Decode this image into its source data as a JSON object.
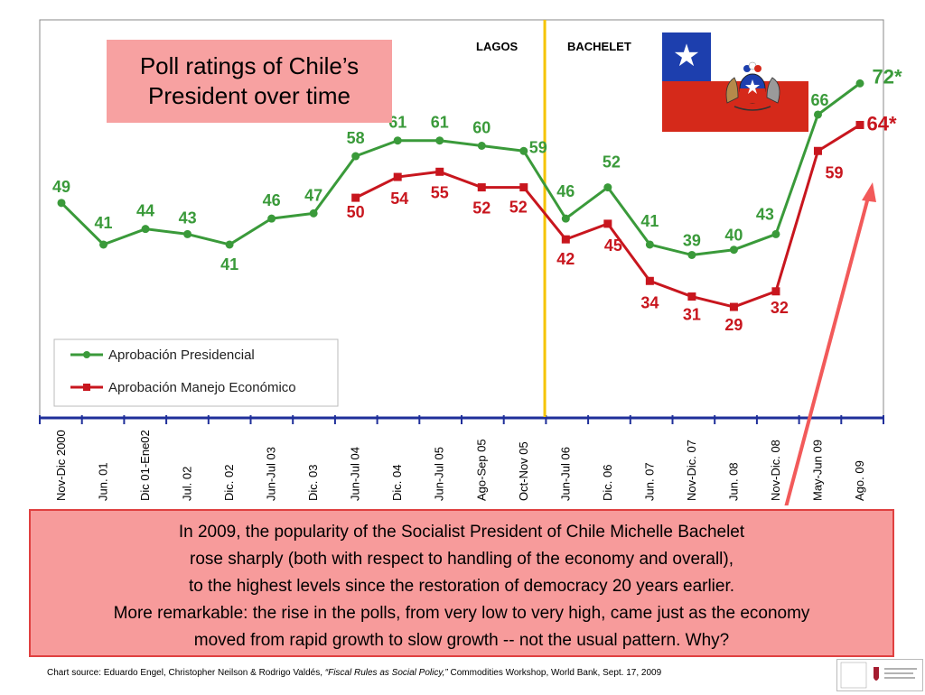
{
  "title": {
    "line1": "Poll ratings of Chile’s",
    "line2": "President over time"
  },
  "eras": {
    "left": "LAGOS",
    "right": "BACHELET"
  },
  "flag": {
    "icon": "chile-flag-icon",
    "blue": "#1d3fae",
    "red": "#d5291a",
    "star": "★"
  },
  "chart_data": {
    "type": "line",
    "categories": [
      "Nov-Dic 2000",
      "Jun. 01",
      "Dic 01-Ene02",
      "Jul. 02",
      "Dic. 02",
      "Jun-Jul 03",
      "Dic. 03",
      "Jun-Jul 04",
      "Dic. 04",
      "Jun-Jul 05",
      "Ago-Sep 05",
      "Oct-Nov 05",
      "Jun-Jul 06",
      "Dic. 06",
      "Jun. 07",
      "Nov-Dic. 07",
      "Jun. 08",
      "Nov-Dic. 08",
      "May-Jun 09",
      "Ago. 09"
    ],
    "series": [
      {
        "name": "Aprobación Presidencial",
        "color": "#3a9a3a",
        "values": [
          49,
          41,
          44,
          43,
          41,
          46,
          47,
          58,
          61,
          61,
          60,
          59,
          46,
          52,
          41,
          39,
          40,
          43,
          66,
          72
        ],
        "labels": [
          "49",
          "41",
          "44",
          "43",
          "41",
          "46",
          "47",
          "58",
          "61",
          "61",
          "60",
          "59",
          "46",
          "52",
          "41",
          "39",
          "40",
          "43",
          "66",
          "72*"
        ]
      },
      {
        "name": "Aprobación Manejo Económico",
        "color": "#c8161e",
        "values": [
          null,
          null,
          null,
          null,
          null,
          null,
          null,
          50,
          54,
          55,
          52,
          52,
          42,
          45,
          34,
          31,
          29,
          32,
          59,
          64
        ],
        "labels": [
          "",
          "",
          "",
          "",
          "",
          "",
          "",
          "50",
          "54",
          "55",
          "52",
          "52",
          "42",
          "45",
          "34",
          "31",
          "29",
          "32",
          "59",
          "64*"
        ]
      }
    ],
    "divider_after": "Oct-Nov 05",
    "legend": "bottom-left",
    "grid": false
  },
  "note": {
    "lines": [
      "In 2009, the popularity of the Socialist President of Chile Michelle Bachelet",
      "rose sharply (both with respect to handling of the economy and overall),",
      "to the highest levels since the restoration of democracy 20 years earlier.",
      "More remarkable:  the rise in the polls, from very low to very high, came just as the economy",
      "moved from rapid growth to slow growth -- not the usual pattern.   Why?"
    ]
  },
  "source": {
    "prefix": "Chart source: Eduardo Engel, Christopher Neilson & Rodrigo Valdés, ",
    "italic": "“Fiscal Rules as Social Policy,”",
    "suffix": "  Commodities Workshop, World Bank, Sept. 17, 2009"
  },
  "logo": {
    "icon": "harvard-kennedy-school-logo"
  }
}
